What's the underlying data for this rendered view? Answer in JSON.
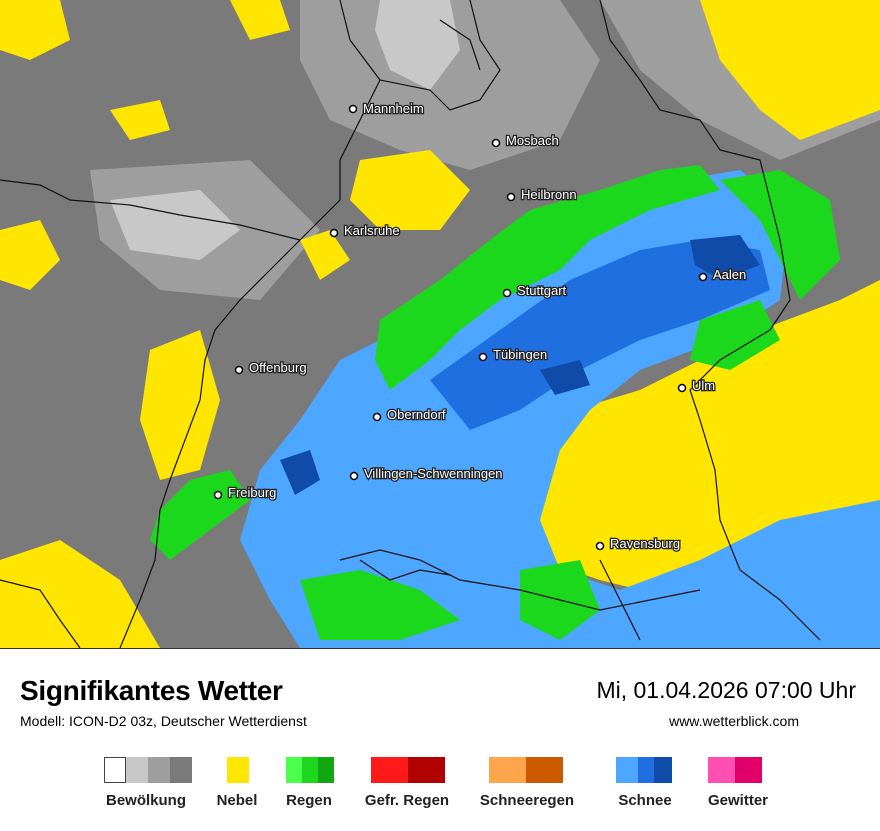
{
  "title": "Signifikantes Wetter",
  "subtitle": "Modell: ICON-D2 03z, Deutscher Wetterdienst",
  "datetime": "Mi, 01.04.2026 07:00 Uhr",
  "website": "www.wetterblick.com",
  "cities": [
    {
      "name": "Mannheim"
    },
    {
      "name": "Mosbach"
    },
    {
      "name": "Heilbronn"
    },
    {
      "name": "Karlsruhe"
    },
    {
      "name": "Aalen"
    },
    {
      "name": "Stuttgart"
    },
    {
      "name": "Offenburg"
    },
    {
      "name": "Tübingen"
    },
    {
      "name": "Ulm"
    },
    {
      "name": "Oberndorf"
    },
    {
      "name": "Villingen-Schwenningen"
    },
    {
      "name": "Freiburg"
    },
    {
      "name": "Ravensburg"
    }
  ],
  "legend": [
    {
      "label": "Bewölkung",
      "colors": [
        "#ffffff",
        "#c8c8c8",
        "#9e9e9e",
        "#7a7a7a"
      ]
    },
    {
      "label": "Nebel",
      "colors": [
        "#ffe600"
      ]
    },
    {
      "label": "Regen",
      "colors": [
        "#4cff4c",
        "#1cd81c",
        "#12a612"
      ]
    },
    {
      "label": "Gefr. Regen",
      "colors": [
        "#ff1a1a",
        "#b00000"
      ]
    },
    {
      "label": "Schneeregen",
      "colors": [
        "#ffa64d",
        "#cc5a00"
      ]
    },
    {
      "label": "Schnee",
      "colors": [
        "#4da6ff",
        "#1f6fe0",
        "#0f4ba8"
      ]
    },
    {
      "label": "Gewitter",
      "colors": [
        "#ff4fb0",
        "#e0006a"
      ]
    }
  ],
  "colors": {
    "cloud_light": "#c8c8c8",
    "cloud_mid": "#9e9e9e",
    "cloud_dark": "#7a7a7a",
    "fog": "#ffe600",
    "rain": "#1cd81c",
    "snow_light": "#4da6ff",
    "snow_mid": "#1f6fe0",
    "snow_dark": "#0f4ba8"
  }
}
